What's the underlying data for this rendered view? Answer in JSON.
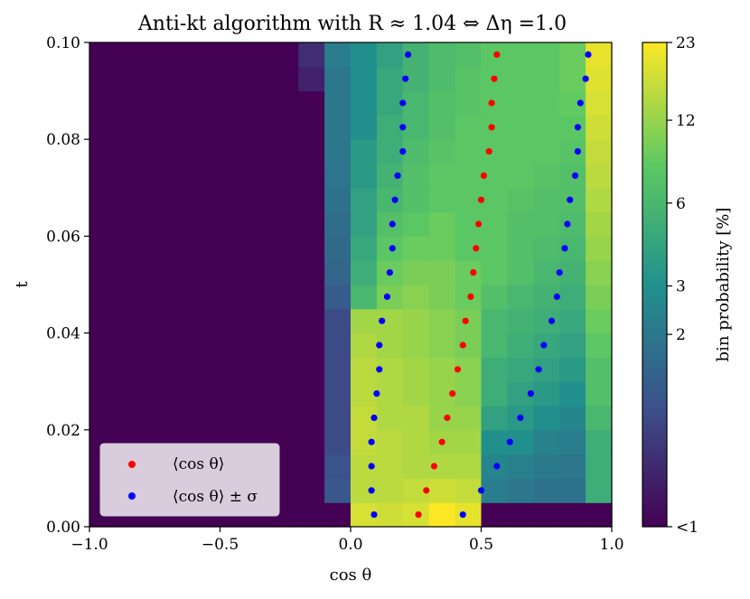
{
  "chart_data": {
    "type": "heatmap",
    "title": "Anti-kt algorithm with R ≈ 1.04 ⇔ Δη =1.0",
    "xlabel": "cos θ",
    "ylabel": "t",
    "xlim": [
      -1.0,
      1.0
    ],
    "ylim": [
      0.0,
      0.1
    ],
    "x_ticks": [
      "−1.0",
      "−0.5",
      "0.0",
      "0.5",
      "1.0"
    ],
    "y_ticks": [
      "0.00",
      "0.02",
      "0.04",
      "0.06",
      "0.08",
      "0.10"
    ],
    "colorbar": {
      "label": "bin probability [%]",
      "ticks": [
        "<1",
        "2",
        "3",
        "6",
        "12",
        "23"
      ],
      "scale": "log",
      "colors": [
        "#440154",
        "#3b528b",
        "#21918c",
        "#5ec962",
        "#fde725"
      ]
    },
    "grid": false,
    "legend_position": "bottom-left",
    "series": [
      {
        "name": "⟨cos θ⟩",
        "color": "#ff0000",
        "points": [
          [
            0.26,
            0.0025
          ],
          [
            0.29,
            0.0075
          ],
          [
            0.32,
            0.0125
          ],
          [
            0.35,
            0.0175
          ],
          [
            0.37,
            0.0225
          ],
          [
            0.39,
            0.0275
          ],
          [
            0.41,
            0.0325
          ],
          [
            0.43,
            0.0375
          ],
          [
            0.44,
            0.0425
          ],
          [
            0.46,
            0.0475
          ],
          [
            0.47,
            0.0525
          ],
          [
            0.48,
            0.0575
          ],
          [
            0.49,
            0.0625
          ],
          [
            0.5,
            0.0675
          ],
          [
            0.51,
            0.0725
          ],
          [
            0.53,
            0.0775
          ],
          [
            0.54,
            0.0825
          ],
          [
            0.54,
            0.0875
          ],
          [
            0.55,
            0.0925
          ],
          [
            0.56,
            0.0975
          ]
        ]
      },
      {
        "name": "⟨cos θ⟩ ± σ",
        "color": "#0000ff",
        "points": [
          [
            0.09,
            0.0025
          ],
          [
            0.08,
            0.0075
          ],
          [
            0.08,
            0.0125
          ],
          [
            0.08,
            0.0175
          ],
          [
            0.09,
            0.0225
          ],
          [
            0.1,
            0.0275
          ],
          [
            0.11,
            0.0325
          ],
          [
            0.11,
            0.0375
          ],
          [
            0.12,
            0.0425
          ],
          [
            0.14,
            0.0475
          ],
          [
            0.15,
            0.0525
          ],
          [
            0.16,
            0.0575
          ],
          [
            0.16,
            0.0625
          ],
          [
            0.17,
            0.0675
          ],
          [
            0.18,
            0.0725
          ],
          [
            0.2,
            0.0775
          ],
          [
            0.2,
            0.0825
          ],
          [
            0.2,
            0.0875
          ],
          [
            0.21,
            0.0925
          ],
          [
            0.22,
            0.0975
          ],
          [
            0.43,
            0.0025
          ],
          [
            0.5,
            0.0075
          ],
          [
            0.56,
            0.0125
          ],
          [
            0.61,
            0.0175
          ],
          [
            0.65,
            0.0225
          ],
          [
            0.69,
            0.0275
          ],
          [
            0.72,
            0.0325
          ],
          [
            0.74,
            0.0375
          ],
          [
            0.77,
            0.0425
          ],
          [
            0.79,
            0.0475
          ],
          [
            0.8,
            0.0525
          ],
          [
            0.82,
            0.0575
          ],
          [
            0.83,
            0.0625
          ],
          [
            0.84,
            0.0675
          ],
          [
            0.86,
            0.0725
          ],
          [
            0.87,
            0.0775
          ],
          [
            0.87,
            0.0825
          ],
          [
            0.88,
            0.0875
          ],
          [
            0.9,
            0.0925
          ],
          [
            0.91,
            0.0975
          ]
        ]
      }
    ],
    "heatmap": {
      "x_edges": [
        -1.0,
        -0.9,
        -0.8,
        -0.7,
        -0.6,
        -0.5,
        -0.4,
        -0.3,
        -0.2,
        -0.1,
        0.0,
        0.1,
        0.2,
        0.3,
        0.4,
        0.5,
        0.6,
        0.7,
        0.8,
        0.9,
        1.0
      ],
      "y_edges": [
        0.0,
        0.005,
        0.01,
        0.015,
        0.02,
        0.025,
        0.03,
        0.035,
        0.04,
        0.045,
        0.05,
        0.055,
        0.06,
        0.065,
        0.07,
        0.075,
        0.08,
        0.085,
        0.09,
        0.095,
        0.1
      ],
      "values_percent": [
        [
          0.4,
          0.4,
          0.4,
          0.4,
          0.4,
          0.4,
          0.4,
          0.4,
          0.4,
          0.4,
          18,
          17,
          18,
          23,
          20,
          0.4,
          0.4,
          0.4,
          0.4,
          0.4
        ],
        [
          0.4,
          0.4,
          0.4,
          0.4,
          0.4,
          0.4,
          0.4,
          0.4,
          0.4,
          1.2,
          15,
          15,
          16,
          17,
          16,
          2.2,
          2.0,
          1.8,
          1.8,
          5
        ],
        [
          0.4,
          0.4,
          0.4,
          0.4,
          0.4,
          0.4,
          0.4,
          0.4,
          0.4,
          1.1,
          15,
          15,
          14,
          14,
          14,
          2.5,
          2.3,
          2.1,
          2.0,
          5
        ],
        [
          0.4,
          0.4,
          0.4,
          0.4,
          0.4,
          0.4,
          0.4,
          0.4,
          0.4,
          1.0,
          16,
          15,
          14,
          13,
          13,
          3,
          3,
          2.4,
          2.2,
          5
        ],
        [
          0.4,
          0.4,
          0.4,
          0.4,
          0.4,
          0.4,
          0.4,
          0.4,
          0.4,
          1.0,
          16,
          14,
          14,
          12,
          12,
          4,
          3.5,
          3,
          2.6,
          6
        ],
        [
          0.4,
          0.4,
          0.4,
          0.4,
          0.4,
          0.4,
          0.4,
          0.4,
          0.4,
          1.0,
          15,
          14,
          13,
          12,
          11,
          5,
          4,
          3.5,
          3,
          7
        ],
        [
          0.4,
          0.4,
          0.4,
          0.4,
          0.4,
          0.4,
          0.4,
          0.4,
          0.4,
          1.0,
          15,
          14,
          13,
          12,
          11,
          5,
          4.5,
          4,
          3.5,
          7
        ],
        [
          0.4,
          0.4,
          0.4,
          0.4,
          0.4,
          0.4,
          0.4,
          0.4,
          0.4,
          1.0,
          14,
          13,
          12,
          11,
          10,
          6,
          5,
          4.5,
          4,
          8
        ],
        [
          0.4,
          0.4,
          0.4,
          0.4,
          0.4,
          0.4,
          0.4,
          0.4,
          0.4,
          1.0,
          13,
          13,
          12,
          11,
          10,
          6,
          5.5,
          5,
          4.5,
          9
        ],
        [
          0.4,
          0.4,
          0.4,
          0.4,
          0.4,
          0.4,
          0.4,
          0.4,
          0.4,
          1.3,
          6,
          10,
          11,
          10,
          9,
          7,
          6,
          5.5,
          5,
          10
        ],
        [
          0.4,
          0.4,
          0.4,
          0.4,
          0.4,
          0.4,
          0.4,
          0.4,
          0.4,
          1.5,
          5,
          9,
          10,
          10,
          9,
          8,
          7,
          6,
          5.5,
          11
        ],
        [
          0.4,
          0.4,
          0.4,
          0.4,
          0.4,
          0.4,
          0.4,
          0.4,
          0.4,
          1.6,
          4.5,
          8,
          9,
          9,
          8,
          8,
          7,
          6.5,
          6,
          12
        ],
        [
          0.4,
          0.4,
          0.4,
          0.4,
          0.4,
          0.4,
          0.4,
          0.4,
          0.4,
          1.7,
          4,
          7,
          8,
          9,
          8,
          8,
          7,
          7,
          6.5,
          13
        ],
        [
          0.4,
          0.4,
          0.4,
          0.4,
          0.4,
          0.4,
          0.4,
          0.4,
          0.4,
          1.8,
          4,
          6,
          7,
          8,
          8,
          8,
          7.5,
          7,
          7,
          14
        ],
        [
          0.4,
          0.4,
          0.4,
          0.4,
          0.4,
          0.4,
          0.4,
          0.4,
          0.4,
          1.9,
          3.5,
          5.5,
          7,
          8,
          8,
          8,
          8,
          7.5,
          7,
          15
        ],
        [
          0.4,
          0.4,
          0.4,
          0.4,
          0.4,
          0.4,
          0.4,
          0.4,
          0.4,
          2.0,
          3.5,
          5,
          6.5,
          7.5,
          8,
          8,
          8,
          8,
          7.5,
          16
        ],
        [
          0.4,
          0.4,
          0.4,
          0.4,
          0.4,
          0.4,
          0.4,
          0.4,
          0.4,
          2.0,
          3,
          5,
          6,
          7,
          8,
          8,
          8,
          8,
          8,
          17
        ],
        [
          0.4,
          0.4,
          0.4,
          0.4,
          0.4,
          0.4,
          0.4,
          0.4,
          0.4,
          2.0,
          3,
          4.5,
          6,
          7,
          7.5,
          8,
          8,
          8,
          8.5,
          18
        ],
        [
          0.4,
          0.4,
          0.4,
          0.4,
          0.4,
          0.4,
          0.4,
          0.4,
          0.6,
          2.0,
          3,
          4.5,
          5.5,
          6.5,
          7.5,
          8,
          8,
          8,
          9,
          19
        ],
        [
          0.4,
          0.4,
          0.4,
          0.4,
          0.4,
          0.4,
          0.4,
          0.4,
          0.7,
          2.2,
          3,
          4,
          5.5,
          6.5,
          7,
          8,
          8,
          8,
          9,
          20
        ]
      ]
    }
  }
}
